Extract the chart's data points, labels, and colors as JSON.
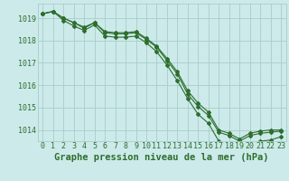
{
  "xlabel": "Graphe pression niveau de la mer (hPa)",
  "hours": [
    0,
    1,
    2,
    3,
    4,
    5,
    6,
    7,
    8,
    9,
    10,
    11,
    12,
    13,
    14,
    15,
    16,
    17,
    18,
    19,
    20,
    21,
    22,
    23
  ],
  "line1": [
    1019.2,
    1019.3,
    1019.0,
    1018.8,
    1018.6,
    1018.8,
    1018.4,
    1018.35,
    1018.35,
    1018.4,
    1018.1,
    1017.75,
    1017.2,
    1016.6,
    1015.75,
    1015.2,
    1014.8,
    1014.0,
    1013.85,
    1013.6,
    1013.85,
    1013.95,
    1014.0,
    1014.0
  ],
  "line2": [
    1019.2,
    1019.3,
    1019.0,
    1018.8,
    1018.55,
    1018.8,
    1018.35,
    1018.3,
    1018.3,
    1018.35,
    1018.05,
    1017.7,
    1017.1,
    1016.5,
    1015.6,
    1015.05,
    1014.65,
    1013.9,
    1013.75,
    1013.5,
    1013.75,
    1013.85,
    1013.9,
    1013.95
  ],
  "line3": [
    1019.2,
    1019.3,
    1018.9,
    1018.65,
    1018.45,
    1018.7,
    1018.2,
    1018.15,
    1018.15,
    1018.2,
    1017.9,
    1017.5,
    1016.9,
    1016.2,
    1015.4,
    1014.7,
    1014.3,
    1013.5,
    1013.3,
    1013.1,
    1013.35,
    1013.5,
    1013.55,
    1013.7
  ],
  "bg_color": "#cceaea",
  "grid_major_color": "#aacccc",
  "grid_minor_color": "#bbdddd",
  "line_color": "#2d6e2d",
  "marker_color": "#2d6e2d",
  "text_color": "#2d6e2d",
  "ylim_min": 1013.5,
  "ylim_max": 1019.65,
  "yticks": [
    1014,
    1015,
    1016,
    1017,
    1018,
    1019
  ],
  "xlabel_fontsize": 7.5,
  "tick_fontsize": 6.0
}
